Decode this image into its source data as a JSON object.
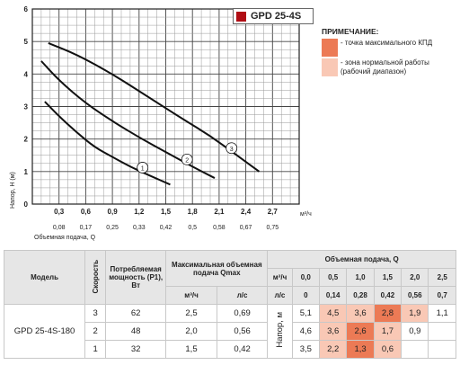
{
  "chart_data": {
    "type": "line",
    "title": "GPD 25-4S",
    "ylabel": "Напор, H (м)",
    "xlabel": "Объемная подача, Q",
    "x_unit": "м³/ч",
    "xlim": [
      0,
      3.0
    ],
    "ylim": [
      0,
      6
    ],
    "x_ticks": [
      "0,3",
      "0,6",
      "0,9",
      "1,2",
      "1,5",
      "1,8",
      "2,1",
      "2,4",
      "2,7"
    ],
    "x_ticks_secondary": [
      "0,08",
      "0,17",
      "0,25",
      "0,33",
      "0,42",
      "0,5",
      "0,58",
      "0,67",
      "0,75"
    ],
    "y_ticks": [
      "0",
      "1",
      "2",
      "3",
      "4",
      "5",
      "6"
    ],
    "grid": true,
    "series": [
      {
        "name": "1",
        "x": [
          0.14,
          0.3,
          0.5,
          0.7,
          0.9,
          1.1,
          1.3,
          1.55
        ],
        "y": [
          3.15,
          2.7,
          2.2,
          1.75,
          1.45,
          1.15,
          0.9,
          0.6
        ]
      },
      {
        "name": "2",
        "x": [
          0.1,
          0.3,
          0.6,
          0.9,
          1.2,
          1.5,
          1.8,
          2.05
        ],
        "y": [
          4.4,
          3.8,
          3.1,
          2.55,
          2.05,
          1.6,
          1.15,
          0.8
        ]
      },
      {
        "name": "3",
        "x": [
          0.18,
          0.5,
          0.9,
          1.3,
          1.7,
          2.0,
          2.3,
          2.55
        ],
        "y": [
          4.95,
          4.6,
          4.0,
          3.3,
          2.6,
          2.1,
          1.5,
          1.0
        ]
      }
    ]
  },
  "model_badge": "GPD 25-4S",
  "note": {
    "title": "ПРИМЕЧАНИЕ:",
    "max_label": "- точка максимального КПД",
    "zone_label_1": "- зона нормальной работы",
    "zone_label_2": "(рабочий диапазон)",
    "max_color": "#ec7a55",
    "zone_color": "#f9c8b5"
  },
  "table": {
    "h_model": "Модель",
    "h_speed": "Скорость",
    "h_power": "Потребляемая мощность (Р1), Вт",
    "h_qmax": "Максимальная объемная подача Qmax",
    "h_m3h": "м³/ч",
    "h_ls": "л/с",
    "h_flow": "Объемная подача, Q",
    "h_head": "Напор, м",
    "q_m3h": [
      "0,0",
      "0,5",
      "1,0",
      "1,5",
      "2,0",
      "2,5"
    ],
    "q_ls": [
      "0",
      "0,14",
      "0,28",
      "0,42",
      "0,56",
      "0,7"
    ],
    "model": "GPD 25-4S-180",
    "rows": [
      {
        "speed": "3",
        "power": "62",
        "qmax_m3h": "2,5",
        "qmax_ls": "0,69",
        "head": [
          "5,1",
          "4,5",
          "3,6",
          "2,8",
          "1,9",
          "1,1"
        ],
        "cls": [
          "",
          "zone",
          "zone",
          "max",
          "zone",
          ""
        ]
      },
      {
        "speed": "2",
        "power": "48",
        "qmax_m3h": "2,0",
        "qmax_ls": "0,56",
        "head": [
          "4,6",
          "3,6",
          "2,6",
          "1,7",
          "0,9",
          ""
        ],
        "cls": [
          "",
          "zone",
          "max",
          "zone",
          "",
          ""
        ]
      },
      {
        "speed": "1",
        "power": "32",
        "qmax_m3h": "1,5",
        "qmax_ls": "0,42",
        "head": [
          "3,5",
          "2,2",
          "1,3",
          "0,6",
          "",
          ""
        ],
        "cls": [
          "",
          "zone",
          "max",
          "zone",
          "",
          ""
        ]
      }
    ]
  }
}
